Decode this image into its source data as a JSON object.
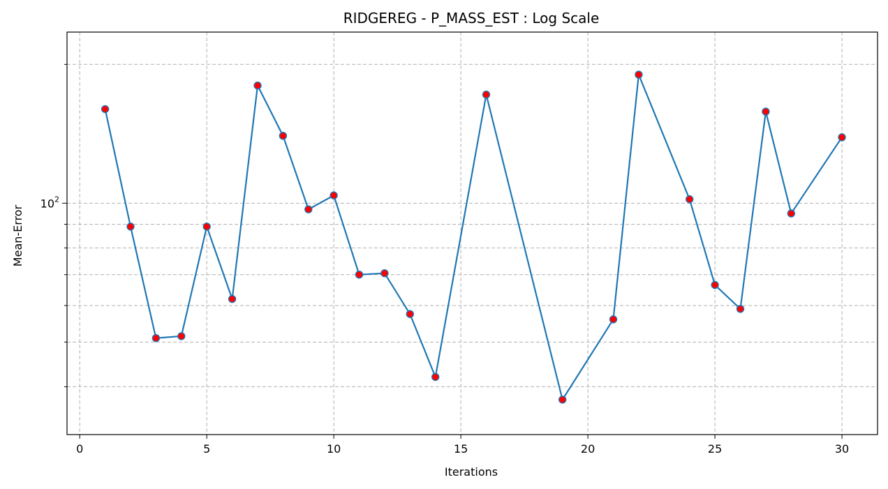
{
  "chart_data": {
    "type": "line",
    "title": "RIDGEREG - P_MASS_EST : Log Scale",
    "xlabel": "Iterations",
    "ylabel": "Mean-Error",
    "yscale": "log",
    "xlim": [
      -0.5,
      31.4
    ],
    "ylim": [
      31.5,
      235
    ],
    "xticks": [
      0,
      5,
      10,
      15,
      20,
      25,
      30
    ],
    "yticks_major": [
      {
        "value": 100,
        "label": "10",
        "exponent": "2"
      }
    ],
    "yticks_minor": [
      40,
      50,
      60,
      70,
      80,
      90,
      200
    ],
    "grid": true,
    "colors": {
      "line": "#1f77b4",
      "marker_face": "#ff0000",
      "marker_edge": "#1f77b4",
      "grid": "#b0b0b0"
    },
    "series": [
      {
        "x": [
          1,
          2,
          3,
          4,
          5,
          6,
          7,
          8,
          9,
          10,
          11,
          12,
          13,
          14,
          16,
          19,
          21,
          22,
          24,
          25,
          26,
          27,
          28,
          30
        ],
        "y": [
          160,
          89,
          51,
          51.5,
          89,
          62,
          180,
          140,
          97,
          104,
          70,
          70.5,
          57.5,
          42,
          172,
          37.5,
          56,
          190,
          102,
          66.5,
          59,
          158,
          95,
          139
        ]
      }
    ]
  }
}
